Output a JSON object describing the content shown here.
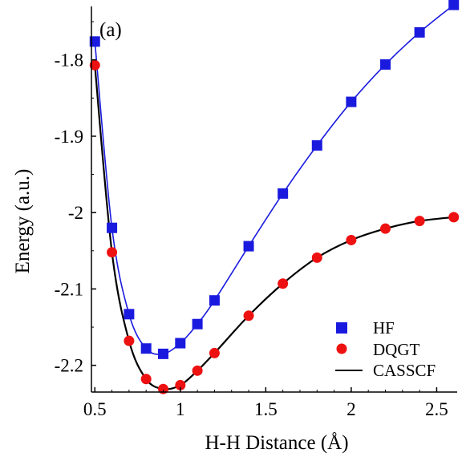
{
  "chart_data": {
    "type": "line",
    "panel_label": "(a)",
    "xlabel": "H-H Distance (Å)",
    "ylabel": "Energy (a.u.)",
    "xlim": [
      0.48,
      2.62
    ],
    "ylim": [
      -2.235,
      -1.73
    ],
    "xticks": [
      0.5,
      1,
      1.5,
      2,
      2.5
    ],
    "xtick_labels": [
      "0.5",
      "1",
      "1.5",
      "2",
      "2.5"
    ],
    "yticks": [
      -1.8,
      -1.9,
      -2.0,
      -2.1,
      -2.2
    ],
    "ytick_labels": [
      "-1.8",
      "-1.9",
      "-2",
      "-2.1",
      "-2.2"
    ],
    "grid": false,
    "legend_position": "bottom-right",
    "colors": {
      "hf": "#1a1adf",
      "dqgt": "#ee1111",
      "casscf": "#000000"
    },
    "series": [
      {
        "name": "HF",
        "marker": "square",
        "x": [
          0.5,
          0.6,
          0.7,
          0.8,
          0.9,
          1.0,
          1.1,
          1.2,
          1.4,
          1.6,
          1.8,
          2.0,
          2.2,
          2.4,
          2.6
        ],
        "y": [
          -1.776,
          -2.02,
          -2.133,
          -2.178,
          -2.185,
          -2.171,
          -2.146,
          -2.115,
          -2.044,
          -1.975,
          -1.912,
          -1.855,
          -1.806,
          -1.764,
          -1.728
        ]
      },
      {
        "name": "DQGT",
        "marker": "circle",
        "x": [
          0.5,
          0.6,
          0.7,
          0.8,
          0.9,
          1.0,
          1.1,
          1.2,
          1.4,
          1.6,
          1.8,
          2.0,
          2.2,
          2.4,
          2.6
        ],
        "y": [
          -1.807,
          -2.052,
          -2.168,
          -2.218,
          -2.231,
          -2.226,
          -2.207,
          -2.184,
          -2.135,
          -2.093,
          -2.059,
          -2.036,
          -2.021,
          -2.011,
          -2.006
        ]
      },
      {
        "name": "CASSCF",
        "marker": "none",
        "x": [
          0.5,
          0.6,
          0.7,
          0.8,
          0.9,
          1.0,
          1.1,
          1.2,
          1.4,
          1.6,
          1.8,
          2.0,
          2.2,
          2.4,
          2.6
        ],
        "y": [
          -1.807,
          -2.052,
          -2.168,
          -2.218,
          -2.231,
          -2.226,
          -2.207,
          -2.184,
          -2.135,
          -2.093,
          -2.059,
          -2.036,
          -2.021,
          -2.011,
          -2.006
        ]
      }
    ]
  }
}
